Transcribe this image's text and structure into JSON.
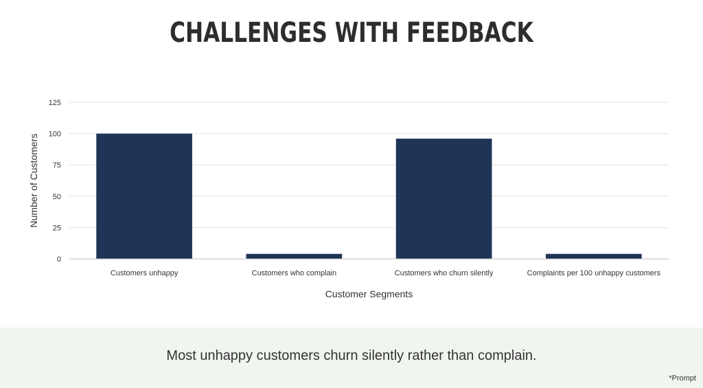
{
  "title": "CHALLENGES WITH FEEDBACK",
  "caption": "Most unhappy customers churn silently rather than complain.",
  "note": "*Prompt",
  "chart_data": {
    "type": "bar",
    "categories": [
      "Customers unhappy",
      "Customers who complain",
      "Customers who churn silently",
      "Complaints per 100 unhappy customers"
    ],
    "values": [
      100,
      4,
      96,
      4
    ],
    "xlabel": "Customer Segments",
    "ylabel": "Number of Customers",
    "ylim": [
      0,
      125
    ],
    "yticks": [
      0,
      25,
      50,
      75,
      100,
      125
    ],
    "grid": true,
    "bar_color": "#1f3557"
  }
}
